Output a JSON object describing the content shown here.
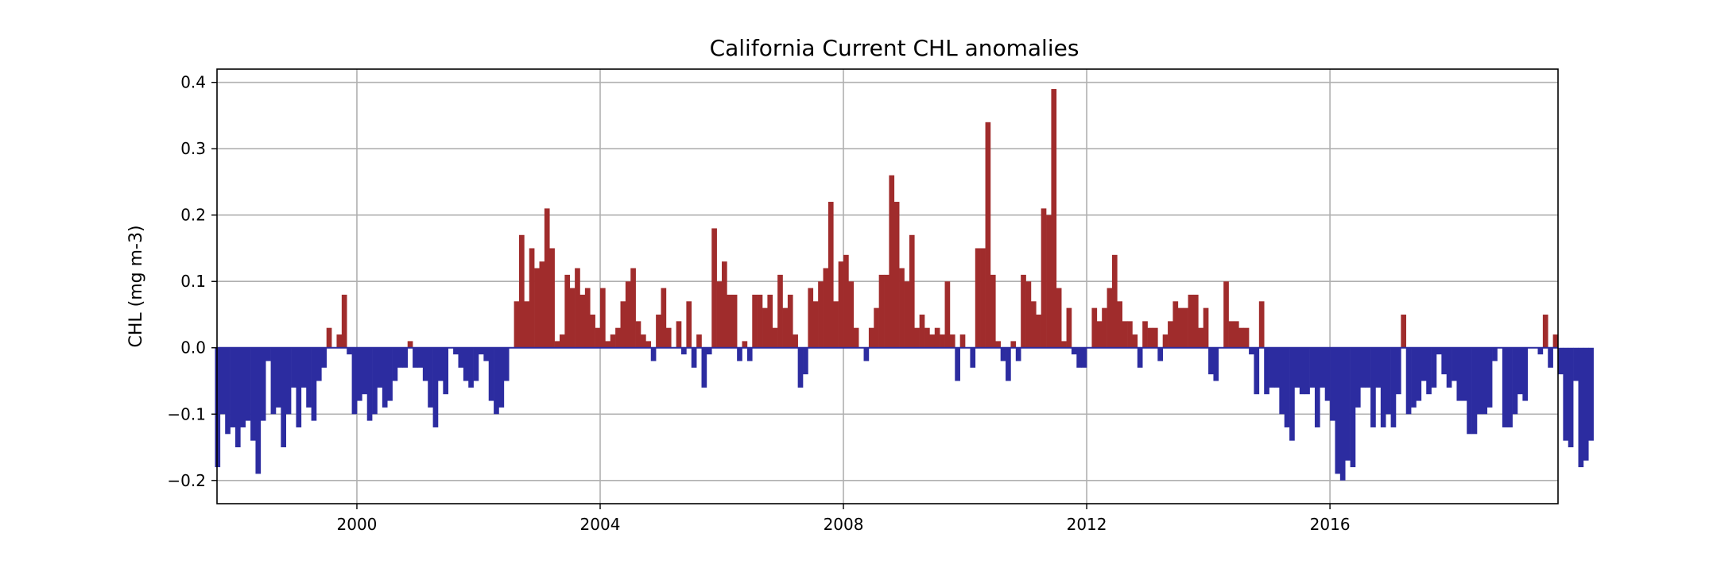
{
  "chart_data": {
    "type": "bar",
    "title": "California Current CHL anomalies",
    "xlabel": "",
    "ylabel": "CHL (mg m-3)",
    "xlim": [
      1997.7,
      2019.75
    ],
    "ylim": [
      -0.235,
      0.42
    ],
    "x_ticks": [
      2000,
      2004,
      2008,
      2012,
      2016
    ],
    "x_tick_labels": [
      "2000",
      "2004",
      "2008",
      "2012",
      "2016"
    ],
    "y_ticks": [
      -0.2,
      -0.1,
      0.0,
      0.1,
      0.2,
      0.3,
      0.4
    ],
    "y_tick_labels": [
      "−0.2",
      "−0.1",
      "0.0",
      "0.1",
      "0.2",
      "0.3",
      "0.4"
    ],
    "grid": true,
    "colors": {
      "positive": "#a02c2c",
      "negative": "#2c2ca0",
      "grid": "#b0b0b0",
      "zero_line": "#2c2ca0"
    },
    "series": [
      {
        "start": "1997-09",
        "frequency": "monthly",
        "values": [
          -0.18,
          -0.1,
          -0.13,
          -0.12,
          -0.15,
          -0.12,
          -0.11,
          -0.14,
          -0.19,
          -0.11,
          -0.02,
          -0.1,
          -0.09,
          -0.15,
          -0.1,
          -0.06,
          -0.12,
          -0.06,
          -0.09,
          -0.11,
          -0.05,
          -0.03,
          0.03,
          0.0,
          0.02,
          0.08,
          -0.01,
          -0.1,
          -0.08,
          -0.07,
          -0.11,
          -0.1,
          -0.06,
          -0.09,
          -0.08,
          -0.05,
          -0.03,
          -0.03,
          0.01,
          -0.03,
          -0.03,
          -0.05,
          -0.09,
          -0.12,
          -0.05,
          -0.07,
          0.0,
          -0.01,
          -0.03,
          -0.05,
          -0.06,
          -0.05,
          -0.01,
          -0.02,
          -0.08,
          -0.1,
          -0.09,
          -0.05,
          0.0,
          0.07,
          0.17,
          0.07,
          0.15,
          0.12,
          0.13,
          0.21,
          0.15,
          0.01,
          0.02,
          0.11,
          0.09,
          0.12,
          0.08,
          0.09,
          0.05,
          0.03,
          0.09,
          0.01,
          0.02,
          0.03,
          0.07,
          0.1,
          0.12,
          0.04,
          0.02,
          0.01,
          -0.02,
          0.05,
          0.09,
          0.03,
          0.0,
          0.04,
          -0.01,
          0.07,
          -0.03,
          0.02,
          -0.06,
          -0.01,
          0.18,
          0.1,
          0.13,
          0.08,
          0.08,
          -0.02,
          0.01,
          -0.02,
          0.08,
          0.08,
          0.06,
          0.08,
          0.03,
          0.11,
          0.06,
          0.08,
          0.02,
          -0.06,
          -0.04,
          0.09,
          0.07,
          0.1,
          0.12,
          0.22,
          0.07,
          0.13,
          0.14,
          0.1,
          0.03,
          0.0,
          -0.02,
          0.03,
          0.06,
          0.11,
          0.11,
          0.26,
          0.22,
          0.12,
          0.1,
          0.17,
          0.03,
          0.05,
          0.03,
          0.02,
          0.03,
          0.02,
          0.1,
          0.02,
          -0.05,
          0.02,
          0.0,
          -0.03,
          0.15,
          0.15,
          0.34,
          0.11,
          0.01,
          -0.02,
          -0.05,
          0.01,
          -0.02,
          0.11,
          0.1,
          0.07,
          0.05,
          0.21,
          0.2,
          0.39,
          0.09,
          0.01,
          0.06,
          -0.01,
          -0.03,
          -0.03,
          0.0,
          0.06,
          0.04,
          0.06,
          0.09,
          0.14,
          0.07,
          0.04,
          0.04,
          0.02,
          -0.03,
          0.04,
          0.03,
          0.03,
          -0.02,
          0.02,
          0.04,
          0.07,
          0.06,
          0.06,
          0.08,
          0.08,
          0.03,
          0.06,
          -0.04,
          -0.05,
          0.0,
          0.1,
          0.04,
          0.04,
          0.03,
          0.03,
          -0.01,
          -0.07,
          0.07,
          -0.07,
          -0.06,
          -0.06,
          -0.1,
          -0.12,
          -0.14,
          -0.06,
          -0.07,
          -0.07,
          -0.06,
          -0.12,
          -0.06,
          -0.08,
          -0.11,
          -0.19,
          -0.2,
          -0.17,
          -0.18,
          -0.09,
          -0.06,
          -0.06,
          -0.12,
          -0.06,
          -0.12,
          -0.1,
          -0.12,
          -0.07,
          0.05,
          -0.1,
          -0.09,
          -0.08,
          -0.05,
          -0.07,
          -0.06,
          -0.01,
          -0.04,
          -0.06,
          -0.05,
          -0.08,
          -0.08,
          -0.13,
          -0.13,
          -0.1,
          -0.1,
          -0.09,
          -0.02,
          0.0,
          -0.12,
          -0.12,
          -0.1,
          -0.07,
          -0.08,
          0.0,
          0.0,
          -0.01,
          0.05,
          -0.03,
          0.02,
          -0.04,
          -0.14,
          -0.15,
          -0.05,
          -0.18,
          -0.17,
          -0.14
        ]
      }
    ]
  }
}
